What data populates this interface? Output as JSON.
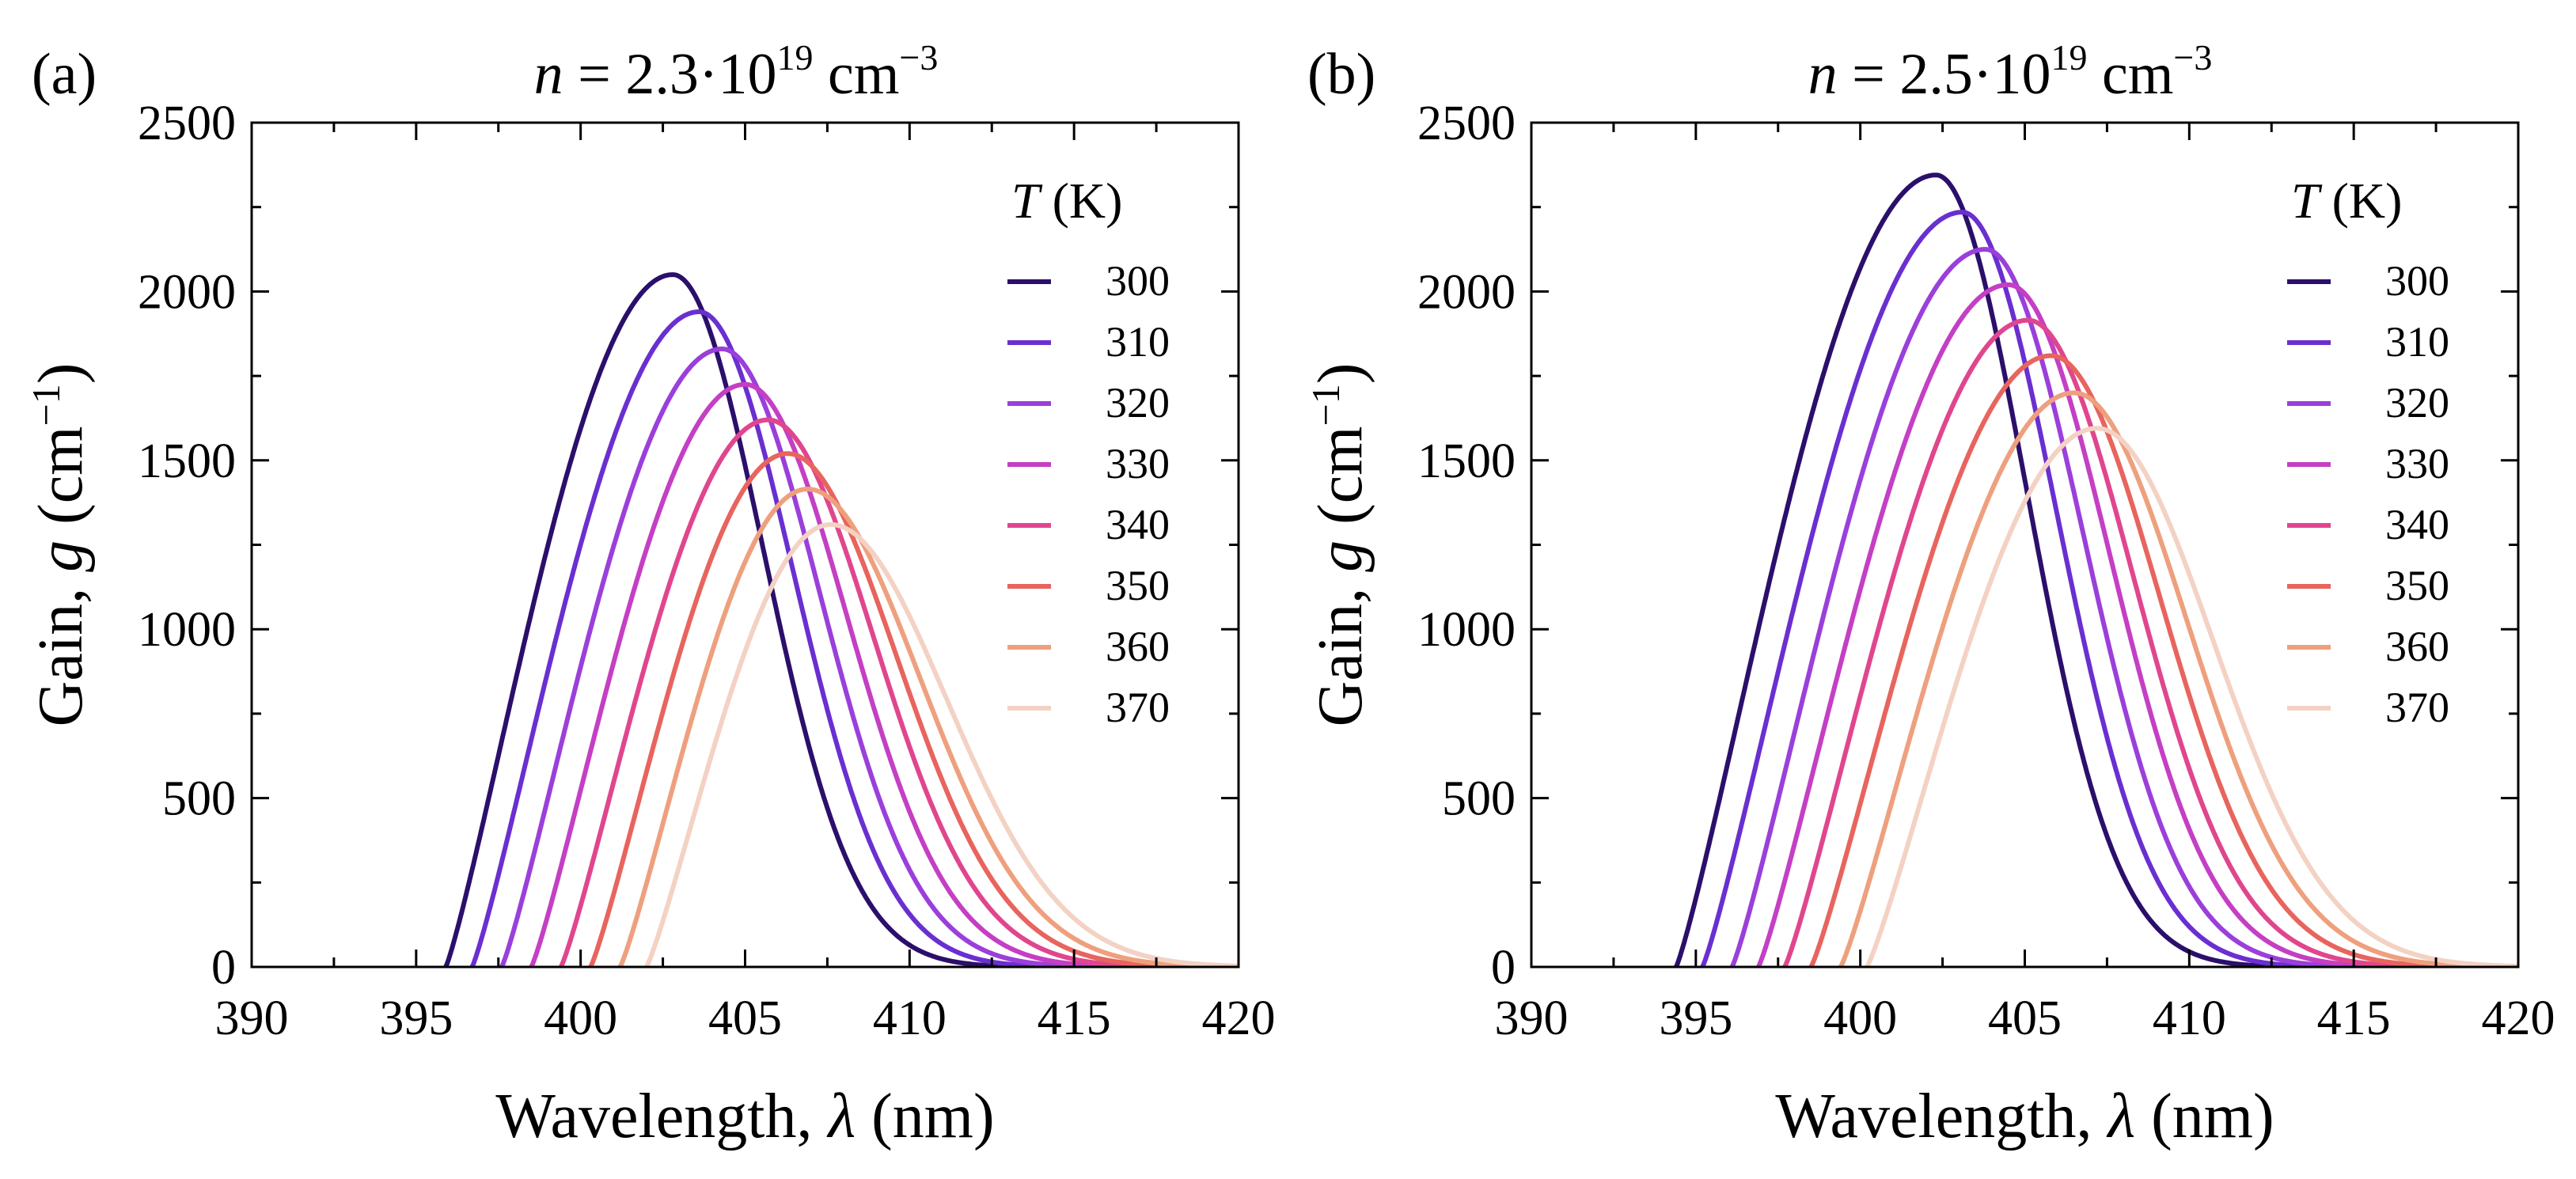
{
  "chart_data": [
    {
      "type": "line",
      "panel_label": "(a)",
      "title": {
        "prefix": "n",
        "middle": " = 2.3·10",
        "exp": "19",
        "suffix": " cm",
        "suffix_exp": "−3"
      },
      "xlabel": {
        "text": "Wavelength, ",
        "symbol": "λ",
        "unit": " (nm)"
      },
      "ylabel": {
        "text": "Gain, ",
        "symbol": "g",
        "unit": " (cm",
        "unit_exp": "−1",
        "close": ")"
      },
      "xlim": [
        390,
        420
      ],
      "ylim": [
        0,
        2500
      ],
      "xticks": [
        "390",
        "395",
        "400",
        "405",
        "410",
        "415",
        "420"
      ],
      "yticks": [
        "0",
        "500",
        "1000",
        "1500",
        "2000",
        "2500"
      ],
      "legend": {
        "title_symbol": "T",
        "title_unit": " (K)",
        "placement": "right"
      },
      "series": [
        {
          "name": "300",
          "color": "#2b0f6b",
          "onset": 395.9,
          "peak_x": 402.8,
          "peak_y": 2050,
          "tail_width": 4.9
        },
        {
          "name": "310",
          "color": "#6a2fd0",
          "onset": 396.7,
          "peak_x": 403.6,
          "peak_y": 1940,
          "tail_width": 5.1
        },
        {
          "name": "320",
          "color": "#9b3fdb",
          "onset": 397.6,
          "peak_x": 404.3,
          "peak_y": 1830,
          "tail_width": 5.3
        },
        {
          "name": "330",
          "color": "#c43fc4",
          "onset": 398.5,
          "peak_x": 405.0,
          "peak_y": 1725,
          "tail_width": 5.5
        },
        {
          "name": "340",
          "color": "#e0468e",
          "onset": 399.4,
          "peak_x": 405.7,
          "peak_y": 1620,
          "tail_width": 5.7
        },
        {
          "name": "350",
          "color": "#e8645e",
          "onset": 400.3,
          "peak_x": 406.3,
          "peak_y": 1520,
          "tail_width": 5.9
        },
        {
          "name": "360",
          "color": "#eea07e",
          "onset": 401.2,
          "peak_x": 406.9,
          "peak_y": 1415,
          "tail_width": 6.1
        },
        {
          "name": "370",
          "color": "#f3d2c4",
          "onset": 402.0,
          "peak_x": 407.6,
          "peak_y": 1310,
          "tail_width": 6.3
        }
      ]
    },
    {
      "type": "line",
      "panel_label": "(b)",
      "title": {
        "prefix": "n",
        "middle": " = 2.5·10",
        "exp": "19",
        "suffix": " cm",
        "suffix_exp": "−3"
      },
      "xlabel": {
        "text": "Wavelength, ",
        "symbol": "λ",
        "unit": " (nm)"
      },
      "ylabel": {
        "text": "Gain, ",
        "symbol": "g",
        "unit": " (cm",
        "unit_exp": "−1",
        "close": ")"
      },
      "xlim": [
        390,
        420
      ],
      "ylim": [
        0,
        2500
      ],
      "xticks": [
        "390",
        "395",
        "400",
        "405",
        "410",
        "415",
        "420"
      ],
      "yticks": [
        "0",
        "500",
        "1000",
        "1500",
        "2000",
        "2500"
      ],
      "legend": {
        "title_symbol": "T",
        "title_unit": " (K)",
        "placement": "right"
      },
      "series": [
        {
          "name": "300",
          "color": "#2b0f6b",
          "onset": 394.4,
          "peak_x": 402.3,
          "peak_y": 2345,
          "tail_width": 4.9
        },
        {
          "name": "310",
          "color": "#6a2fd0",
          "onset": 395.2,
          "peak_x": 403.1,
          "peak_y": 2235,
          "tail_width": 5.1
        },
        {
          "name": "320",
          "color": "#9b3fdb",
          "onset": 396.1,
          "peak_x": 403.8,
          "peak_y": 2125,
          "tail_width": 5.3
        },
        {
          "name": "330",
          "color": "#c43fc4",
          "onset": 396.9,
          "peak_x": 404.5,
          "peak_y": 2020,
          "tail_width": 5.5
        },
        {
          "name": "340",
          "color": "#e0468e",
          "onset": 397.7,
          "peak_x": 405.1,
          "peak_y": 1915,
          "tail_width": 5.7
        },
        {
          "name": "350",
          "color": "#e8645e",
          "onset": 398.5,
          "peak_x": 405.8,
          "peak_y": 1810,
          "tail_width": 5.9
        },
        {
          "name": "360",
          "color": "#eea07e",
          "onset": 399.4,
          "peak_x": 406.5,
          "peak_y": 1700,
          "tail_width": 6.1
        },
        {
          "name": "370",
          "color": "#f3d2c4",
          "onset": 400.2,
          "peak_x": 407.2,
          "peak_y": 1595,
          "tail_width": 6.3
        }
      ]
    }
  ]
}
